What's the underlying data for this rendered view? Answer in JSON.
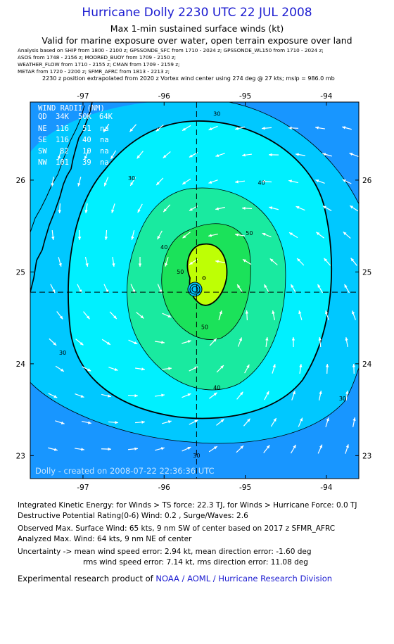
{
  "header": {
    "title": "Hurricane Dolly 2230 UTC 22 JUL 2008",
    "subtitle1": "Max 1-min sustained surface winds (kt)",
    "subtitle2": "Valid for marine exposure over water, open terrain exposure over land",
    "info": [
      "Analysis based on  SHIP from 1800 - 2100 z;  GPSSONDE_SFC from 1710 - 2024 z;  GPSSONDE_WL150 from 1710 - 2024 z;",
      "ASOS from 1748 - 2156 z;  MOORED_BUOY from 1709 - 2150 z;",
      "WEATHER_FLOW from 1710 - 2155 z;  CMAN from 1709 - 2159 z;",
      "METAR from 1720 - 2200 z;  SFMR_AFRC from 1813 - 2213 z;"
    ],
    "center_note": "2230 z position extrapolated from 2020 z Vortex wind center using 274 deg @ 27 kts; mslp = 986.0 mb"
  },
  "map": {
    "lon_range": [
      -97.65,
      -93.6
    ],
    "lat_range": [
      22.75,
      26.85
    ],
    "lon_ticks": [
      -97,
      -96,
      -95,
      -94
    ],
    "lat_ticks": [
      23,
      24,
      25,
      26
    ],
    "lon_tick_labels": [
      "-97",
      "-96",
      "-95",
      "-94"
    ],
    "lat_tick_labels": [
      "23",
      "24",
      "25",
      "26"
    ],
    "center": {
      "lon": -95.6,
      "lat": 24.78
    },
    "contour_levels_kt": [
      30,
      34,
      40,
      50,
      64
    ],
    "contour_labels": [
      {
        "text": "30",
        "lon": -95.35,
        "lat": 26.7
      },
      {
        "text": "30",
        "lon": -96.4,
        "lat": 26.0
      },
      {
        "text": "30",
        "lon": -97.25,
        "lat": 24.1
      },
      {
        "text": "30",
        "lon": -93.8,
        "lat": 23.6
      },
      {
        "text": "30",
        "lon": -95.6,
        "lat": 22.98
      },
      {
        "text": "40",
        "lon": -94.8,
        "lat": 25.95
      },
      {
        "text": "40",
        "lon": -96.0,
        "lat": 25.25
      },
      {
        "text": "40",
        "lon": -95.35,
        "lat": 23.72
      },
      {
        "text": "50",
        "lon": -94.95,
        "lat": 25.4
      },
      {
        "text": "50",
        "lon": -95.8,
        "lat": 24.98
      },
      {
        "text": "50",
        "lon": -95.5,
        "lat": 24.38
      }
    ],
    "colors": {
      "lt30": "#1896ff",
      "c30_34": "#00c8ff",
      "c34_40": "#00f0ff",
      "c40_50": "#19eaa0",
      "c50_64": "#1be25a",
      "c64_plus": "#beff05",
      "eye": "#00c8ff"
    },
    "wind_radii": {
      "title": "WIND RADII (NM)",
      "header": [
        "QD",
        "34K",
        "50K",
        "64K"
      ],
      "rows": [
        [
          "NE",
          "116",
          "51",
          "na"
        ],
        [
          "SE",
          "116",
          "40",
          "na"
        ],
        [
          "SW",
          "82",
          "10",
          "na"
        ],
        [
          "NW",
          "101",
          "39",
          "na"
        ]
      ]
    },
    "watermark": "Dolly - created on 2008-07-22 22:36:36 UTC"
  },
  "stats": {
    "ike": "Integrated Kinetic Energy:  for Winds > TS force: 22.3 TJ,  for Winds > Hurricane Force: 0.0 TJ",
    "dpr": "Destructive Potential Rating(0-6)   Wind: 0.2 , Surge/Waves: 2.6",
    "observed": "Observed Max. Surface Wind: 65 kts, 9 nm SW of center based on 2017 z SFMR_AFRC",
    "analyzed": "Analyzed Max. Wind: 64 kts, 9 nm NE of center",
    "uncertainty1": "Uncertainty -> mean wind speed error: 2.94 kt,   mean direction error:  -1.60 deg",
    "uncertainty2": "rms wind speed error: 7.14 kt,   rms direction error: 11.08 deg",
    "credit_prefix": "Experimental research product of ",
    "credit_org": "NOAA / AOML / Hurricane Research Division"
  }
}
